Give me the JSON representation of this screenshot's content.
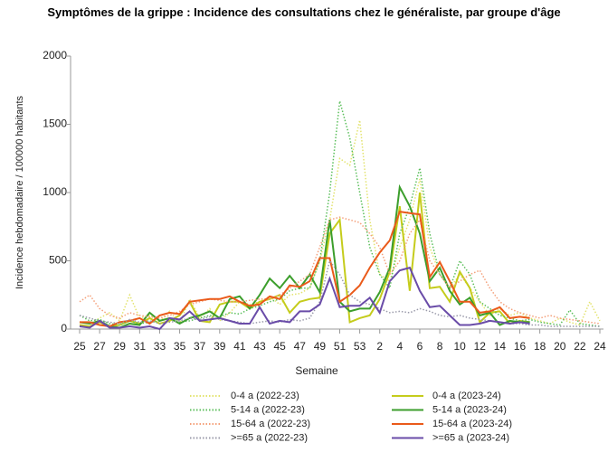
{
  "chart_data": {
    "type": "line",
    "title": "Symptômes de la grippe : Incidence des consultations chez le généraliste, par groupe d'âge",
    "xlabel": "Semaine",
    "ylabel": "Incidence hebdomadaire / 100000 habitants",
    "categories": [
      "25",
      null,
      "27",
      null,
      "29",
      null,
      "31",
      null,
      "33",
      null,
      "35",
      null,
      "37",
      null,
      "39",
      null,
      "41",
      null,
      "43",
      null,
      "45",
      null,
      "47",
      null,
      "49",
      null,
      "51",
      null,
      "53",
      null,
      "2",
      null,
      "4",
      null,
      "6",
      null,
      "8",
      null,
      "10",
      null,
      "12",
      null,
      "14",
      null,
      "16",
      null,
      "18",
      null,
      "20",
      null,
      "22",
      null,
      "24"
    ],
    "ylim": [
      0,
      2000
    ],
    "yticks": [
      0,
      500,
      1000,
      1500,
      2000
    ],
    "grid": false,
    "series": [
      {
        "name": "0-4 a (2022-23)",
        "color": "#e3e36e",
        "style": "dotted",
        "values": [
          50,
          40,
          80,
          120,
          60,
          250,
          80,
          100,
          60,
          130,
          40,
          220,
          80,
          150,
          60,
          120,
          200,
          180,
          200,
          240,
          180,
          250,
          260,
          300,
          500,
          800,
          1250,
          1200,
          1530,
          800,
          400,
          350,
          600,
          800,
          1100,
          600,
          400,
          300,
          400,
          300,
          200,
          100,
          150,
          100,
          120,
          80,
          60,
          40,
          80,
          50,
          30,
          200,
          60
        ]
      },
      {
        "name": "0-4 a (2023-24)",
        "color": "#c5cc1c",
        "style": "solid",
        "values": [
          30,
          20,
          50,
          20,
          30,
          60,
          40,
          80,
          40,
          60,
          100,
          200,
          60,
          50,
          180,
          200,
          200,
          150,
          200,
          220,
          250,
          120,
          200,
          220,
          230,
          700,
          800,
          50,
          80,
          100,
          220,
          420,
          900,
          280,
          1000,
          300,
          310,
          200,
          420,
          300,
          50,
          120,
          130,
          40,
          60,
          50,
          null,
          null,
          null,
          null,
          null,
          null,
          null
        ]
      },
      {
        "name": "5-14 a (2022-23)",
        "color": "#5cbf5c",
        "style": "dotted",
        "values": [
          100,
          60,
          70,
          40,
          30,
          60,
          40,
          50,
          60,
          80,
          50,
          60,
          80,
          100,
          90,
          120,
          110,
          150,
          170,
          200,
          220,
          280,
          300,
          300,
          500,
          1000,
          1670,
          1400,
          1000,
          600,
          400,
          300,
          700,
          900,
          1180,
          700,
          400,
          300,
          500,
          400,
          200,
          150,
          100,
          80,
          60,
          70,
          50,
          40,
          30,
          140,
          40,
          30,
          20
        ]
      },
      {
        "name": "5-14 a (2023-24)",
        "color": "#3c9e2c",
        "style": "solid",
        "values": [
          50,
          40,
          60,
          20,
          10,
          40,
          30,
          120,
          60,
          80,
          40,
          80,
          100,
          130,
          80,
          220,
          240,
          150,
          250,
          370,
          300,
          390,
          300,
          400,
          270,
          800,
          200,
          130,
          150,
          150,
          270,
          450,
          1040,
          900,
          700,
          350,
          450,
          280,
          180,
          230,
          100,
          120,
          30,
          60,
          50,
          50,
          null,
          null,
          null,
          null,
          null,
          null,
          null
        ]
      },
      {
        "name": "15-64 a (2022-23)",
        "color": "#f4a07a",
        "style": "dotted",
        "values": [
          200,
          250,
          150,
          100,
          80,
          120,
          100,
          90,
          80,
          100,
          130,
          180,
          200,
          220,
          210,
          200,
          200,
          210,
          220,
          220,
          250,
          300,
          350,
          400,
          600,
          800,
          820,
          800,
          780,
          700,
          600,
          400,
          500,
          700,
          800,
          500,
          400,
          300,
          350,
          400,
          430,
          300,
          200,
          150,
          120,
          100,
          80,
          100,
          80,
          70,
          60,
          50,
          40
        ]
      },
      {
        "name": "15-64 a (2023-24)",
        "color": "#ea5a1a",
        "style": "solid",
        "values": [
          50,
          50,
          30,
          20,
          50,
          60,
          80,
          40,
          100,
          120,
          110,
          200,
          210,
          220,
          220,
          240,
          200,
          170,
          180,
          240,
          220,
          320,
          310,
          350,
          520,
          520,
          200,
          250,
          320,
          450,
          560,
          650,
          860,
          850,
          840,
          380,
          490,
          350,
          200,
          200,
          120,
          130,
          160,
          80,
          90,
          80,
          null,
          null,
          null,
          null,
          null,
          null,
          null
        ]
      },
      {
        "name": ">=65 a (2022-23)",
        "color": "#9a9aaa",
        "style": "dotted",
        "values": [
          100,
          80,
          60,
          50,
          40,
          70,
          50,
          60,
          40,
          50,
          60,
          80,
          70,
          90,
          70,
          60,
          50,
          40,
          50,
          60,
          50,
          70,
          60,
          80,
          200,
          500,
          400,
          250,
          200,
          180,
          150,
          120,
          130,
          120,
          150,
          130,
          100,
          90,
          100,
          80,
          70,
          60,
          50,
          40,
          40,
          30,
          30,
          20,
          20,
          20,
          20,
          20,
          20
        ]
      },
      {
        "name": ">=65 a (2023-24)",
        "color": "#6a4ca8",
        "style": "solid",
        "values": [
          20,
          10,
          60,
          10,
          10,
          20,
          10,
          20,
          0,
          80,
          70,
          130,
          60,
          70,
          80,
          60,
          40,
          40,
          160,
          40,
          60,
          50,
          130,
          130,
          180,
          370,
          160,
          170,
          170,
          230,
          120,
          350,
          430,
          450,
          280,
          160,
          170,
          100,
          30,
          30,
          40,
          60,
          50,
          40,
          50,
          40,
          null,
          null,
          null,
          null,
          null,
          null,
          null
        ]
      }
    ]
  }
}
